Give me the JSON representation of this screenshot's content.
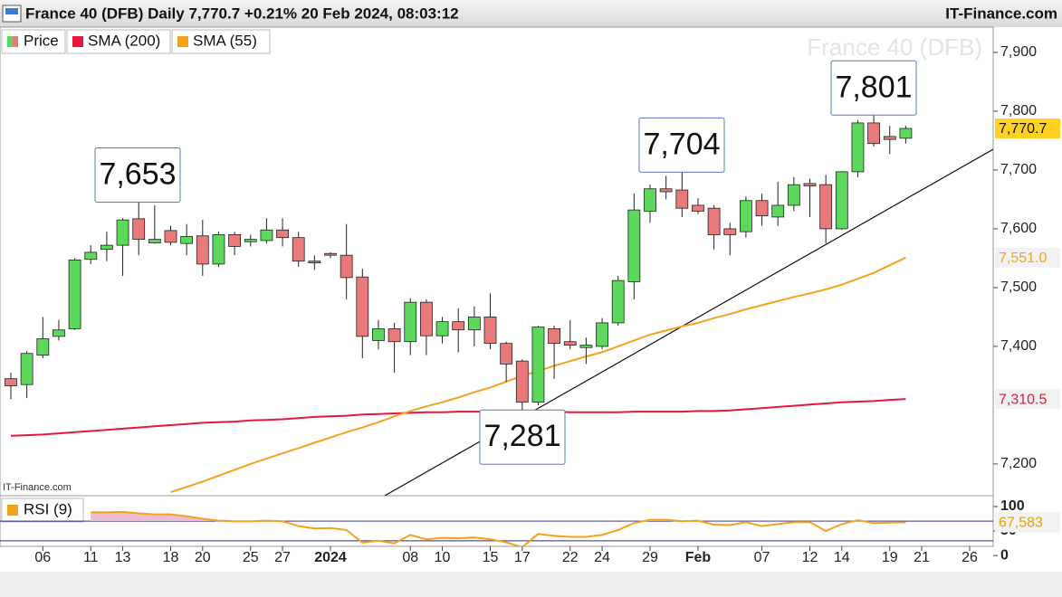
{
  "chart_data": {
    "type": "candlestick",
    "title": "France 40 (DFB) Daily 7,770.7 +0.21% 20 Feb 2024, 08:03:12",
    "source": "IT-Finance.com",
    "watermark": "France 40 (DFB)",
    "price_name": "Price",
    "up_color": "#5cd85c",
    "down_color": "#e87a7c",
    "categories": [
      null,
      null,
      "06",
      null,
      null,
      "11",
      null,
      "13",
      null,
      null,
      "18",
      null,
      "20",
      null,
      null,
      "25",
      null,
      "27",
      null,
      null,
      "2024",
      null,
      null,
      null,
      null,
      "08",
      null,
      "10",
      null,
      null,
      "15",
      null,
      "17",
      null,
      null,
      "22",
      null,
      "24",
      null,
      null,
      "29",
      null,
      null,
      "Feb",
      null,
      null,
      null,
      "07",
      null,
      null,
      "12",
      null,
      "14",
      null,
      null,
      "19",
      null,
      "21",
      null,
      null,
      "26"
    ],
    "open": [
      7345,
      7335,
      7385,
      7417,
      7430,
      7548,
      7565,
      7572,
      7617,
      7576,
      7597,
      7575,
      7588,
      7540,
      7590,
      7578,
      7580,
      7598,
      7585,
      7545,
      7558,
      7555,
      7518,
      7410,
      7430,
      7408,
      7475,
      7418,
      7442,
      7428,
      7450,
      7405,
      7375,
      7305,
      7430,
      7408,
      7398,
      7400,
      7440,
      7510,
      7630,
      7668,
      7666,
      7640,
      7635,
      7600,
      7595,
      7648,
      7620,
      7640,
      7677,
      7675,
      7600,
      7697,
      7780,
      7757,
      7754,
      null,
      null,
      null,
      null
    ],
    "high": [
      7355,
      7392,
      7450,
      7445,
      7550,
      7572,
      7595,
      7618,
      7653,
      7640,
      7605,
      7608,
      7615,
      7595,
      7595,
      7590,
      7618,
      7618,
      7595,
      7555,
      7560,
      7608,
      7532,
      7445,
      7440,
      7482,
      7480,
      7450,
      7465,
      7468,
      7490,
      7408,
      7378,
      7435,
      7435,
      7445,
      7415,
      7448,
      7520,
      7660,
      7675,
      7690,
      7704,
      7652,
      7640,
      7610,
      7655,
      7660,
      7680,
      7688,
      7685,
      7692,
      7698,
      7785,
      7801,
      7775,
      7775,
      null,
      null,
      null,
      null
    ],
    "low": [
      7310,
      7312,
      7380,
      7410,
      7428,
      7540,
      7545,
      7520,
      7555,
      7575,
      7572,
      7555,
      7520,
      7535,
      7555,
      7570,
      7575,
      7570,
      7535,
      7530,
      7550,
      7480,
      7380,
      7395,
      7355,
      7385,
      7385,
      7405,
      7390,
      7400,
      7395,
      7340,
      7281,
      7300,
      7345,
      7395,
      7370,
      7395,
      7435,
      7480,
      7610,
      7650,
      7620,
      7625,
      7565,
      7555,
      7585,
      7605,
      7605,
      7630,
      7620,
      7575,
      7598,
      7688,
      7740,
      7727,
      7745,
      null,
      null,
      null,
      null
    ],
    "close": [
      7333,
      7388,
      7413,
      7428,
      7547,
      7560,
      7572,
      7615,
      7582,
      7582,
      7577,
      7587,
      7540,
      7590,
      7570,
      7582,
      7598,
      7585,
      7545,
      7542,
      7555,
      7517,
      7417,
      7430,
      7408,
      7475,
      7418,
      7442,
      7428,
      7450,
      7405,
      7370,
      7305,
      7433,
      7405,
      7402,
      7402,
      7440,
      7512,
      7632,
      7668,
      7663,
      7635,
      7630,
      7590,
      7590,
      7648,
      7622,
      7640,
      7675,
      7673,
      7600,
      7697,
      7780,
      7745,
      7752,
      7770.7,
      null,
      null,
      null,
      null
    ],
    "last_label": "7,770.7",
    "ylim": [
      7146,
      7943
    ],
    "yticks": [
      {
        "value": 7200,
        "label": "7,200"
      },
      {
        "value": 7400,
        "label": "7,400"
      },
      {
        "value": 7500,
        "label": "7,500"
      },
      {
        "value": 7600,
        "label": "7,600"
      },
      {
        "value": 7700,
        "label": "7,700"
      },
      {
        "value": 7800,
        "label": "7,800"
      },
      {
        "value": 7900,
        "label": "7,900"
      }
    ],
    "series": [
      {
        "name": "SMA (200)",
        "color": "#e8163c",
        "last_label": "7,310.5",
        "values": [
          7248,
          7249,
          7250,
          7252,
          7254,
          7256,
          7258,
          7260,
          7262,
          7264,
          7266,
          7268,
          7270,
          7271,
          7272,
          7274,
          7275,
          7276,
          7278,
          7280,
          7281,
          7282,
          7284,
          7285,
          7286,
          7287,
          7288,
          7288,
          7289,
          7289,
          7289,
          7289,
          7289,
          7289,
          7289,
          7288,
          7288,
          7288,
          7288,
          7289,
          7289,
          7289,
          7289,
          7290,
          7290,
          7291,
          7293,
          7295,
          7297,
          7299,
          7301,
          7303,
          7305,
          7306,
          7307,
          7309,
          7310.5,
          null,
          null,
          null,
          null
        ]
      },
      {
        "name": "SMA (55)",
        "color": "#f5a11c",
        "last_label": "7,551.0",
        "values": [
          null,
          null,
          null,
          null,
          null,
          null,
          null,
          null,
          null,
          null,
          7152,
          7161,
          7170,
          7180,
          7190,
          7200,
          7209,
          7218,
          7227,
          7236,
          7245,
          7254,
          7262,
          7271,
          7281,
          7290,
          7298,
          7305,
          7313,
          7322,
          7330,
          7340,
          7350,
          7358,
          7367,
          7375,
          7383,
          7390,
          7400,
          7410,
          7420,
          7427,
          7434,
          7440,
          7448,
          7455,
          7463,
          7470,
          7477,
          7484,
          7490,
          7497,
          7505,
          7515,
          7525,
          7538,
          7551,
          null,
          null,
          null,
          null
        ]
      }
    ],
    "annotations": [
      {
        "label": "7,653",
        "value": 7653
      },
      {
        "label": "7,281",
        "value": 7281
      },
      {
        "label": "7,704",
        "value": 7704
      },
      {
        "label": "7,801",
        "value": 7801
      }
    ],
    "rsi": {
      "name": "RSI (9)",
      "color": "#f5a11c",
      "fill": "#e9bcd0",
      "last_label": "67,583",
      "ylim": [
        -33,
        122
      ],
      "yticks": [
        0,
        50,
        100
      ],
      "levels": [
        70,
        30
      ],
      "values": [
        null,
        null,
        null,
        null,
        null,
        88,
        88,
        89,
        86,
        84,
        84,
        80,
        75,
        71,
        70,
        70,
        71,
        70,
        60,
        55,
        56,
        52,
        26,
        30,
        25,
        42,
        33,
        36,
        35,
        37,
        33,
        27,
        17,
        44,
        40,
        38,
        38,
        42,
        52,
        66,
        73,
        73,
        70,
        71,
        63,
        62,
        68,
        60,
        64,
        68,
        68,
        50,
        64,
        72,
        66,
        67,
        67.583,
        null,
        null,
        null,
        null
      ]
    }
  }
}
